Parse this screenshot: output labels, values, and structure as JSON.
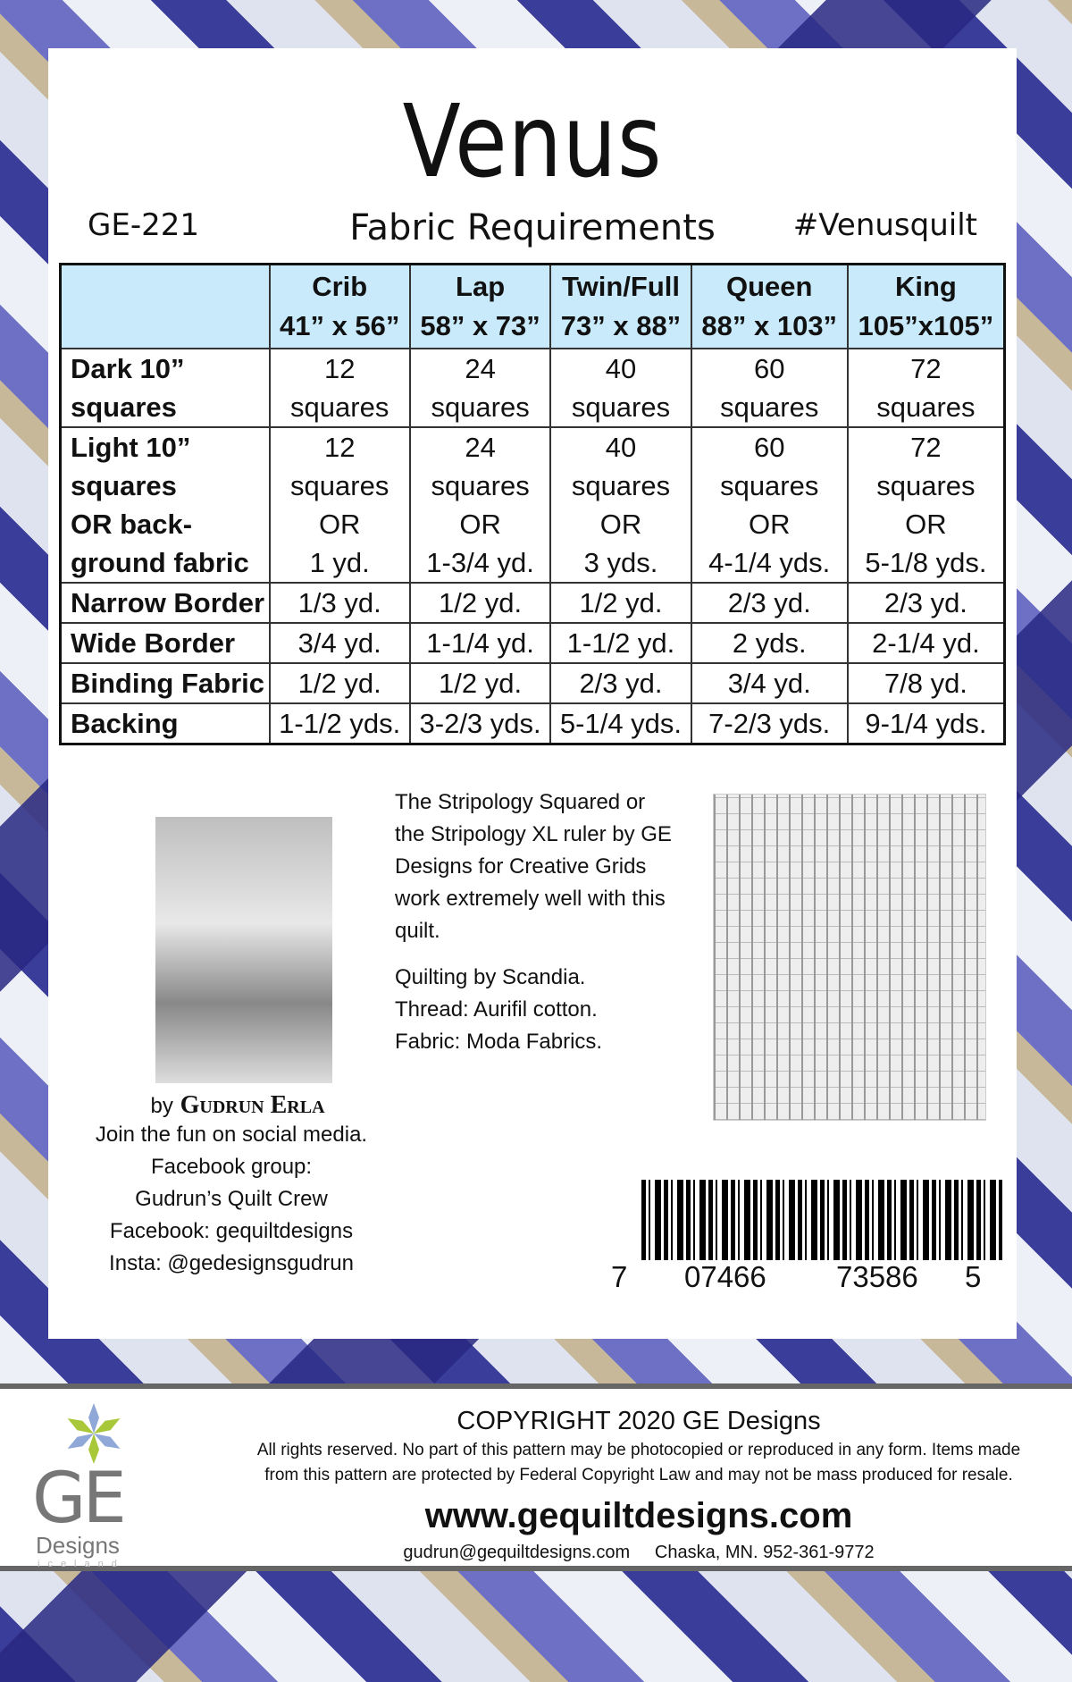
{
  "title": "Venus",
  "pattern_code": "GE-221",
  "subtitle": "Fabric Requirements",
  "hashtag": "#Venusquilt",
  "table": {
    "columns": [
      {
        "name": "Crib",
        "size": "41” x 56”"
      },
      {
        "name": "Lap",
        "size": "58” x 73”"
      },
      {
        "name": "Twin/Full",
        "size": "73” x 88”"
      },
      {
        "name": "Queen",
        "size": "88” x 103”"
      },
      {
        "name": "King",
        "size": "105”x105”"
      }
    ],
    "rows": [
      {
        "label": [
          "Dark 10”",
          "squares"
        ],
        "cells": [
          [
            "12",
            "squares"
          ],
          [
            "24",
            "squares"
          ],
          [
            "40",
            "squares"
          ],
          [
            "60",
            "squares"
          ],
          [
            "72",
            "squares"
          ]
        ]
      },
      {
        "label": [
          "Light 10”",
          "squares",
          "OR back-",
          "ground fabric"
        ],
        "cells": [
          [
            "12",
            "squares",
            "OR",
            "1 yd."
          ],
          [
            "24",
            "squares",
            "OR",
            "1-3/4 yd."
          ],
          [
            "40",
            "squares",
            "OR",
            "3 yds."
          ],
          [
            "60",
            "squares",
            "OR",
            "4-1/4 yds."
          ],
          [
            "72",
            "squares",
            "OR",
            "5-1/8 yds."
          ]
        ]
      },
      {
        "label": [
          "Narrow Border"
        ],
        "cells": [
          [
            "1/3 yd."
          ],
          [
            "1/2 yd."
          ],
          [
            "1/2 yd."
          ],
          [
            "2/3 yd."
          ],
          [
            "2/3 yd."
          ]
        ]
      },
      {
        "label": [
          "Wide Border"
        ],
        "cells": [
          [
            "3/4 yd."
          ],
          [
            "1-1/4 yd."
          ],
          [
            "1-1/2 yd."
          ],
          [
            "2 yds."
          ],
          [
            "2-1/4 yd."
          ]
        ]
      },
      {
        "label": [
          "Binding Fabric"
        ],
        "cells": [
          [
            "1/2 yd."
          ],
          [
            "1/2 yd."
          ],
          [
            "2/3 yd."
          ],
          [
            "3/4 yd."
          ],
          [
            "7/8 yd."
          ]
        ]
      },
      {
        "label": [
          "Backing"
        ],
        "cells": [
          [
            "1-1/2 yds."
          ],
          [
            "3-2/3 yds."
          ],
          [
            "5-1/4 yds."
          ],
          [
            "7-2/3 yds."
          ],
          [
            "9-1/4 yds."
          ]
        ]
      }
    ]
  },
  "ruler_text": [
    "The Stripology Squared or",
    "the Stripology XL ruler by GE",
    "Designs for Creative Grids",
    "work extremely well with this",
    "quilt."
  ],
  "credits": [
    "Quilting by Scandia.",
    "Thread: Aurifil cotton.",
    "Fabric: Moda Fabrics."
  ],
  "author": {
    "by": "by",
    "name": "Gudrun Erla"
  },
  "social": [
    "Join the fun on social media.",
    "Facebook group:",
    "Gudrun’s Quilt Crew",
    "Facebook: gequiltdesigns",
    "Insta: @gedesignsgudrun"
  ],
  "barcode": {
    "d1": "7",
    "d2": "07466",
    "d3": "73586",
    "d4": "5"
  },
  "footer": {
    "logo": {
      "ge": "GE",
      "designs": "Designs",
      "country": "Iceland"
    },
    "copyright": "COPYRIGHT 2020  GE Designs",
    "rights": [
      "All rights reserved. No part of this pattern may be photocopied or reproduced in any form. Items made",
      "from this pattern are protected by Federal Copyright Law and may not be mass produced for resale."
    ],
    "website": "www.gequiltdesigns.com",
    "contact": "gudrun@gequiltdesigns.com     Chaska, MN. 952-361-9772"
  },
  "colors": {
    "header_bg": "#c9eafb",
    "logo_green": "#a8c83a",
    "logo_blue": "#8fa8d8"
  }
}
